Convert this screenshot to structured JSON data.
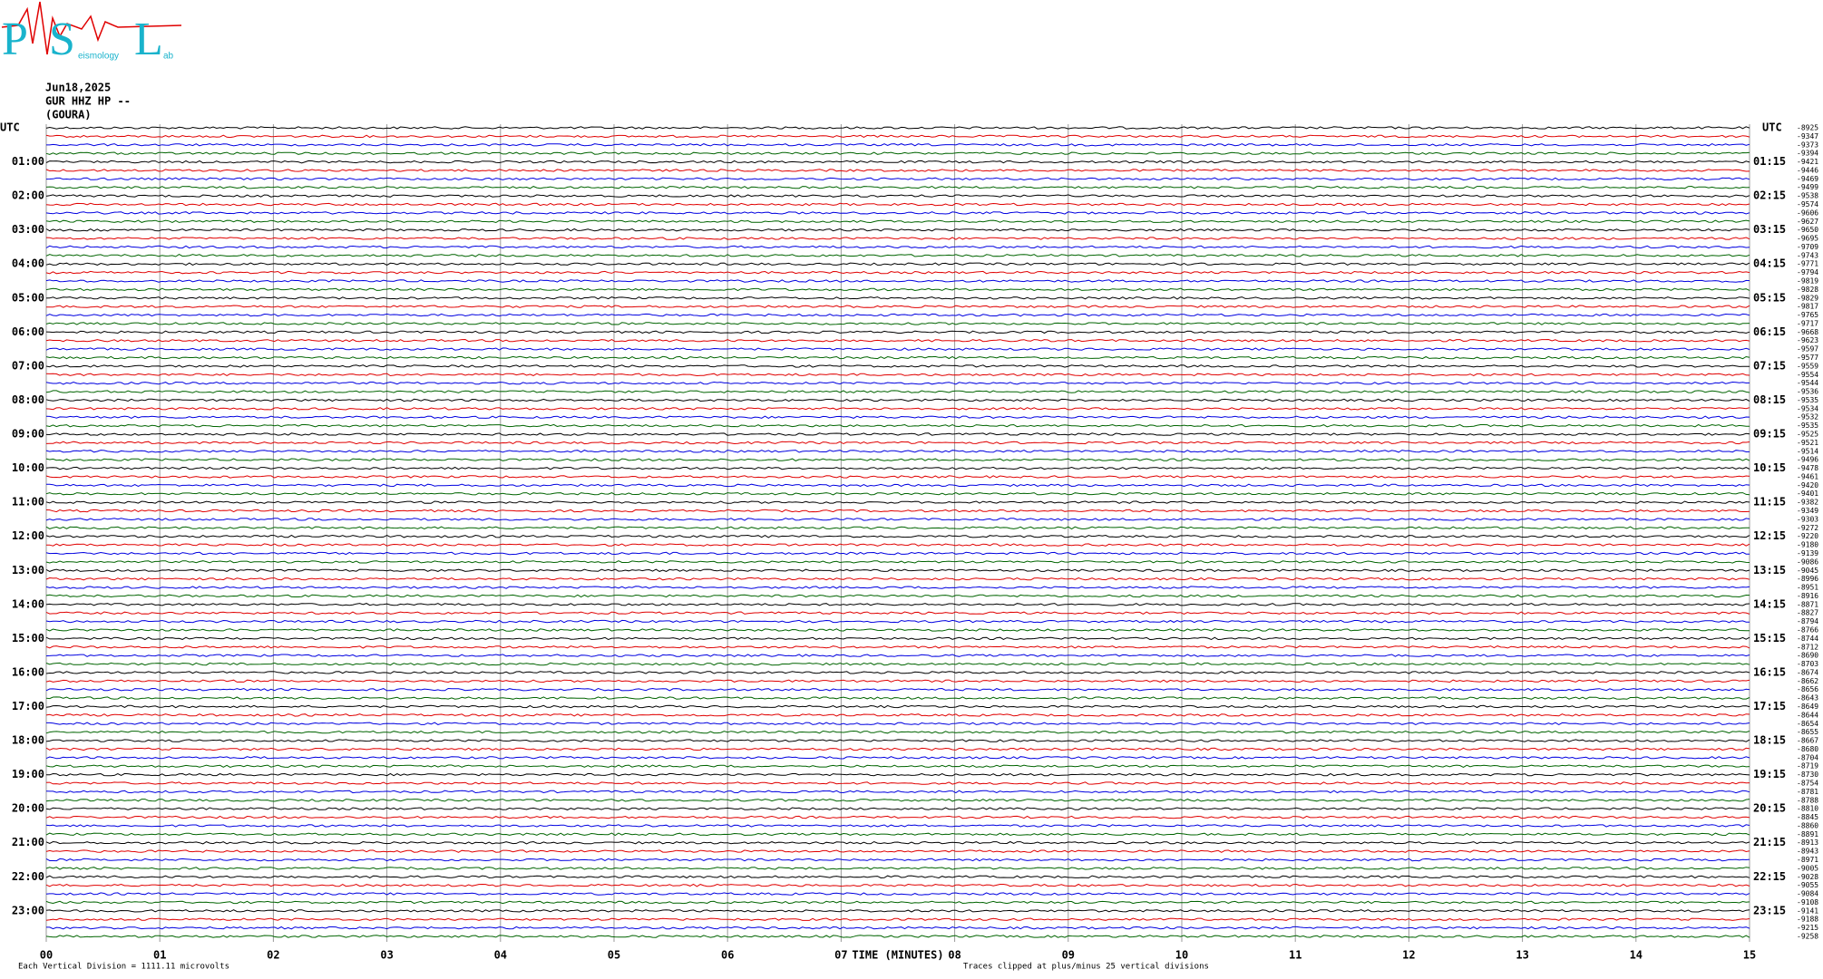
{
  "chart_data": {
    "type": "helicorder",
    "logo": {
      "letters": [
        "P",
        "S",
        "L"
      ],
      "words": [
        "eismology",
        "ab"
      ]
    },
    "title_lines": [
      "Jun18,2025",
      "GUR HHZ HP --",
      "(GOURA)"
    ],
    "xlim": [
      0,
      15
    ],
    "xticks": [
      {
        "value": 0,
        "label": "00"
      },
      {
        "value": 1,
        "label": "01"
      },
      {
        "value": 2,
        "label": "02"
      },
      {
        "value": 3,
        "label": "03"
      },
      {
        "value": 4,
        "label": "04"
      },
      {
        "value": 5,
        "label": "05"
      },
      {
        "value": 6,
        "label": "06"
      },
      {
        "value": 7,
        "label": "07"
      },
      {
        "value": 8,
        "label": "08"
      },
      {
        "value": 9,
        "label": "09"
      },
      10,
      11,
      12,
      13,
      14,
      15
    ],
    "xlabel": "TIME (MINUTES)",
    "trace_colors": [
      "#000000",
      "#e00000",
      "#0000e0",
      "#006400"
    ],
    "left_labels": [
      "UTC",
      "01:00",
      "02:00",
      "03:00",
      "04:00",
      "05:00",
      "06:00",
      "07:00",
      "08:00",
      "09:00",
      "10:00",
      "11:00",
      "12:00",
      "13:00",
      "14:00",
      "15:00",
      "16:00",
      "17:00",
      "18:00",
      "19:00",
      "20:00",
      "21:00",
      "22:00",
      "23:00"
    ],
    "right_labels": [
      "UTC",
      "01:15",
      "02:15",
      "03:15",
      "04:15",
      "05:15",
      "06:15",
      "07:15",
      "08:15",
      "09:15",
      "10:15",
      "11:15",
      "12:15",
      "13:15",
      "14:15",
      "15:15",
      "16:15",
      "17:15",
      "18:15",
      "19:15",
      "20:15",
      "21:15",
      "22:15",
      "23:15"
    ],
    "offsets": [
      -8925,
      -9347,
      -9373,
      -9394,
      -9421,
      -9446,
      -9469,
      -9499,
      -9538,
      -9574,
      -9606,
      -9627,
      -9650,
      -9695,
      -9709,
      -9743,
      -9771,
      -9794,
      -9819,
      -9828,
      -9829,
      -9817,
      -9765,
      -9717,
      -9668,
      -9623,
      -9597,
      -9577,
      -9559,
      -9554,
      -9544,
      -9536,
      -9535,
      -9534,
      -9532,
      -9535,
      -9525,
      -9521,
      -9514,
      -9496,
      -9478,
      -9461,
      -9420,
      -9401,
      -9382,
      -9349,
      -9303,
      -9272,
      -9220,
      -9180,
      -9139,
      -9086,
      -9045,
      -8996,
      -8951,
      -8916,
      -8871,
      -8827,
      -8794,
      -8766,
      -8744,
      -8712,
      -8690,
      -8703,
      -8674,
      -8662,
      -8656,
      -8643,
      -8649,
      -8644,
      -8654,
      -8655,
      -8667,
      -8680,
      -8704,
      -8719,
      -8730,
      -8754,
      -8781,
      -8788,
      -8810,
      -8845,
      -8860,
      -8891,
      -8913,
      -8943,
      -8971,
      -9005,
      -9028,
      -9055,
      -9084,
      -9108,
      -9141,
      -9188,
      -9215,
      -9258
    ],
    "footnote_left": "Each Vertical Division = 1111.11 microvolts",
    "footnote_right": "Traces clipped at plus/minus 25 vertical divisions"
  }
}
